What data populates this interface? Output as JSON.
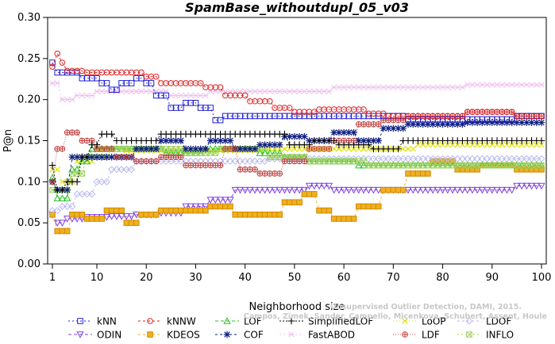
{
  "chart_data": {
    "type": "line",
    "title": "SpamBase_withoutdupl_05_v03",
    "xlabel": "Neighborhood size",
    "ylabel": "P@n",
    "xlim": [
      1,
      100
    ],
    "ylim": [
      0.0,
      0.3
    ],
    "xticks": [
      1,
      10,
      20,
      30,
      40,
      50,
      60,
      70,
      80,
      90,
      100
    ],
    "yticks": [
      "0.00",
      "0.05",
      "0.10",
      "0.15",
      "0.20",
      "0.25",
      "0.30"
    ],
    "legend_position": "bottom",
    "watermark": [
      "Unsupervised Outlier Detection, DAMI, 2015.",
      "Campos, Zimek, Sander, Campello, Micenkova, Schubert, Assent, Houle"
    ],
    "series": [
      {
        "name": "kNN",
        "color": "#2020d0",
        "marker": "square",
        "dash": "2,3",
        "points": [
          [
            1,
            0.245
          ],
          [
            2,
            0.233
          ],
          [
            5,
            0.233
          ],
          [
            9,
            0.226
          ],
          [
            12,
            0.22
          ],
          [
            14,
            0.212
          ],
          [
            16,
            0.22
          ],
          [
            19,
            0.226
          ],
          [
            21,
            0.22
          ],
          [
            22,
            0.205
          ],
          [
            27,
            0.19
          ],
          [
            29,
            0.196
          ],
          [
            32,
            0.19
          ],
          [
            35,
            0.175
          ],
          [
            36,
            0.18
          ],
          [
            55,
            0.18
          ],
          [
            60,
            0.18
          ],
          [
            70,
            0.18
          ],
          [
            75,
            0.176
          ],
          [
            80,
            0.176
          ],
          [
            90,
            0.176
          ],
          [
            100,
            0.18
          ]
        ]
      },
      {
        "name": "kNNW",
        "color": "#e02020",
        "marker": "circle",
        "dash": "3,3",
        "points": [
          [
            1,
            0.24
          ],
          [
            2,
            0.256
          ],
          [
            3,
            0.245
          ],
          [
            5,
            0.235
          ],
          [
            10,
            0.233
          ],
          [
            15,
            0.233
          ],
          [
            19,
            0.233
          ],
          [
            21,
            0.228
          ],
          [
            24,
            0.22
          ],
          [
            30,
            0.22
          ],
          [
            34,
            0.215
          ],
          [
            37,
            0.205
          ],
          [
            44,
            0.198
          ],
          [
            48,
            0.19
          ],
          [
            52,
            0.185
          ],
          [
            57,
            0.188
          ],
          [
            64,
            0.188
          ],
          [
            66,
            0.183
          ],
          [
            72,
            0.18
          ],
          [
            80,
            0.18
          ],
          [
            90,
            0.185
          ],
          [
            100,
            0.18
          ]
        ]
      },
      {
        "name": "LOF",
        "color": "#20c020",
        "marker": "triangle",
        "dash": "4,3",
        "points": [
          [
            1,
            0.105
          ],
          [
            3,
            0.08
          ],
          [
            6,
            0.115
          ],
          [
            8,
            0.125
          ],
          [
            10,
            0.14
          ],
          [
            15,
            0.14
          ],
          [
            20,
            0.14
          ],
          [
            28,
            0.135
          ],
          [
            35,
            0.14
          ],
          [
            40,
            0.14
          ],
          [
            46,
            0.135
          ],
          [
            50,
            0.13
          ],
          [
            55,
            0.125
          ],
          [
            60,
            0.125
          ],
          [
            65,
            0.12
          ],
          [
            70,
            0.12
          ],
          [
            80,
            0.12
          ],
          [
            90,
            0.12
          ],
          [
            100,
            0.12
          ]
        ]
      },
      {
        "name": "SimplifiedLOF",
        "color": "#000000",
        "marker": "plus",
        "dash": "2,2",
        "points": [
          [
            1,
            0.12
          ],
          [
            3,
            0.09
          ],
          [
            5,
            0.1
          ],
          [
            8,
            0.13
          ],
          [
            10,
            0.145
          ],
          [
            12,
            0.158
          ],
          [
            15,
            0.15
          ],
          [
            20,
            0.15
          ],
          [
            25,
            0.158
          ],
          [
            35,
            0.158
          ],
          [
            45,
            0.158
          ],
          [
            52,
            0.145
          ],
          [
            56,
            0.15
          ],
          [
            62,
            0.145
          ],
          [
            70,
            0.14
          ],
          [
            74,
            0.15
          ],
          [
            80,
            0.15
          ],
          [
            90,
            0.15
          ],
          [
            100,
            0.15
          ]
        ]
      },
      {
        "name": "LoOP",
        "color": "#e0e000",
        "marker": "x",
        "dash": "1,3",
        "points": [
          [
            1,
            0.115
          ],
          [
            4,
            0.1
          ],
          [
            8,
            0.125
          ],
          [
            12,
            0.14
          ],
          [
            20,
            0.138
          ],
          [
            30,
            0.138
          ],
          [
            40,
            0.138
          ],
          [
            50,
            0.14
          ],
          [
            60,
            0.14
          ],
          [
            70,
            0.14
          ],
          [
            80,
            0.145
          ],
          [
            90,
            0.145
          ],
          [
            100,
            0.145
          ]
        ]
      },
      {
        "name": "LDOF",
        "color": "#b8b8f0",
        "marker": "diamond",
        "dash": "3,3",
        "points": [
          [
            1,
            0.065
          ],
          [
            4,
            0.07
          ],
          [
            8,
            0.085
          ],
          [
            11,
            0.1
          ],
          [
            15,
            0.115
          ],
          [
            20,
            0.125
          ],
          [
            30,
            0.125
          ],
          [
            40,
            0.125
          ],
          [
            50,
            0.128
          ],
          [
            60,
            0.128
          ],
          [
            70,
            0.128
          ],
          [
            80,
            0.128
          ],
          [
            90,
            0.128
          ],
          [
            100,
            0.128
          ]
        ]
      },
      {
        "name": "ODIN",
        "color": "#8040e0",
        "marker": "triangle-down",
        "dash": "4,3",
        "points": [
          [
            1,
            0.06
          ],
          [
            3,
            0.05
          ],
          [
            5,
            0.055
          ],
          [
            10,
            0.057
          ],
          [
            15,
            0.058
          ],
          [
            20,
            0.06
          ],
          [
            25,
            0.062
          ],
          [
            30,
            0.07
          ],
          [
            35,
            0.078
          ],
          [
            40,
            0.09
          ],
          [
            45,
            0.09
          ],
          [
            50,
            0.09
          ],
          [
            55,
            0.095
          ],
          [
            60,
            0.09
          ],
          [
            70,
            0.09
          ],
          [
            80,
            0.09
          ],
          [
            90,
            0.09
          ],
          [
            100,
            0.095
          ]
        ]
      },
      {
        "name": "KDEOS",
        "color": "#f0b020",
        "marker": "square-filled",
        "dash": "3,3",
        "points": [
          [
            1,
            0.06
          ],
          [
            2,
            0.04
          ],
          [
            4,
            0.04
          ],
          [
            6,
            0.06
          ],
          [
            10,
            0.055
          ],
          [
            14,
            0.065
          ],
          [
            17,
            0.05
          ],
          [
            20,
            0.06
          ],
          [
            25,
            0.065
          ],
          [
            30,
            0.065
          ],
          [
            35,
            0.07
          ],
          [
            40,
            0.06
          ],
          [
            45,
            0.06
          ],
          [
            50,
            0.075
          ],
          [
            53,
            0.085
          ],
          [
            56,
            0.065
          ],
          [
            60,
            0.055
          ],
          [
            65,
            0.07
          ],
          [
            70,
            0.09
          ],
          [
            75,
            0.11
          ],
          [
            80,
            0.125
          ],
          [
            85,
            0.115
          ],
          [
            90,
            0.12
          ],
          [
            100,
            0.115
          ]
        ]
      },
      {
        "name": "COF",
        "color": "#102080",
        "marker": "star",
        "dash": "3,3",
        "points": [
          [
            1,
            0.1
          ],
          [
            3,
            0.09
          ],
          [
            6,
            0.13
          ],
          [
            10,
            0.13
          ],
          [
            15,
            0.13
          ],
          [
            20,
            0.14
          ],
          [
            25,
            0.15
          ],
          [
            30,
            0.14
          ],
          [
            35,
            0.15
          ],
          [
            40,
            0.14
          ],
          [
            45,
            0.145
          ],
          [
            50,
            0.155
          ],
          [
            55,
            0.15
          ],
          [
            60,
            0.16
          ],
          [
            66,
            0.15
          ],
          [
            70,
            0.165
          ],
          [
            75,
            0.17
          ],
          [
            80,
            0.17
          ],
          [
            90,
            0.172
          ],
          [
            100,
            0.172
          ]
        ]
      },
      {
        "name": "FastABOD",
        "color": "#f0c0f0",
        "marker": "cross",
        "dash": "2,3",
        "points": [
          [
            1,
            0.22
          ],
          [
            4,
            0.2
          ],
          [
            8,
            0.205
          ],
          [
            12,
            0.21
          ],
          [
            20,
            0.21
          ],
          [
            30,
            0.205
          ],
          [
            35,
            0.21
          ],
          [
            40,
            0.21
          ],
          [
            45,
            0.21
          ],
          [
            50,
            0.21
          ],
          [
            55,
            0.21
          ],
          [
            60,
            0.215
          ],
          [
            70,
            0.215
          ],
          [
            80,
            0.215
          ],
          [
            90,
            0.218
          ],
          [
            100,
            0.218
          ]
        ]
      },
      {
        "name": "LDF",
        "color": "#c04040",
        "marker": "circle-plus",
        "dash": "1,2",
        "points": [
          [
            1,
            0.1
          ],
          [
            3,
            0.14
          ],
          [
            5,
            0.16
          ],
          [
            8,
            0.15
          ],
          [
            12,
            0.14
          ],
          [
            16,
            0.13
          ],
          [
            20,
            0.125
          ],
          [
            25,
            0.13
          ],
          [
            30,
            0.12
          ],
          [
            35,
            0.12
          ],
          [
            37,
            0.14
          ],
          [
            40,
            0.115
          ],
          [
            45,
            0.11
          ],
          [
            50,
            0.125
          ],
          [
            55,
            0.14
          ],
          [
            60,
            0.15
          ],
          [
            65,
            0.17
          ],
          [
            70,
            0.175
          ],
          [
            75,
            0.18
          ],
          [
            80,
            0.18
          ],
          [
            90,
            0.185
          ],
          [
            100,
            0.18
          ]
        ]
      },
      {
        "name": "INFLO",
        "color": "#a0d060",
        "marker": "box-x",
        "dash": "2,3",
        "points": [
          [
            1,
            0.09
          ],
          [
            3,
            0.09
          ],
          [
            6,
            0.11
          ],
          [
            10,
            0.13
          ],
          [
            15,
            0.14
          ],
          [
            20,
            0.14
          ],
          [
            25,
            0.14
          ],
          [
            30,
            0.135
          ],
          [
            40,
            0.14
          ],
          [
            50,
            0.13
          ],
          [
            55,
            0.125
          ],
          [
            60,
            0.125
          ],
          [
            70,
            0.12
          ],
          [
            80,
            0.12
          ],
          [
            90,
            0.12
          ],
          [
            100,
            0.12
          ]
        ]
      }
    ]
  }
}
